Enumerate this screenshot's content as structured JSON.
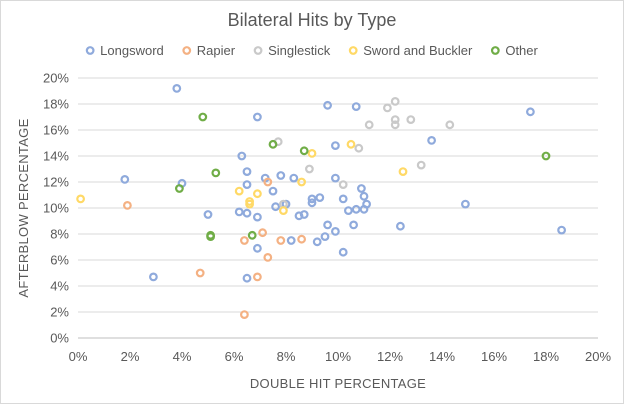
{
  "chart_data": {
    "type": "scatter",
    "title": "Bilateral Hits by Type",
    "xlabel": "DOUBLE HIT PERCENTAGE",
    "ylabel": "AFTERBLOW PERCENTAGE",
    "xlim": [
      0,
      20
    ],
    "ylim": [
      0,
      20
    ],
    "x_ticks": [
      "0%",
      "2%",
      "4%",
      "6%",
      "8%",
      "10%",
      "12%",
      "14%",
      "16%",
      "18%",
      "20%"
    ],
    "y_ticks": [
      "0%",
      "2%",
      "4%",
      "6%",
      "8%",
      "10%",
      "12%",
      "14%",
      "16%",
      "18%",
      "20%"
    ],
    "grid": "horizontal",
    "legend_position": "top",
    "series": [
      {
        "name": "Longsword",
        "color": "#8faadc",
        "points": [
          [
            3.8,
            19.2
          ],
          [
            1.8,
            12.2
          ],
          [
            4.0,
            11.9
          ],
          [
            2.9,
            4.7
          ],
          [
            5.0,
            9.5
          ],
          [
            6.2,
            9.7
          ],
          [
            6.5,
            9.6
          ],
          [
            6.3,
            14.0
          ],
          [
            6.5,
            12.8
          ],
          [
            6.5,
            11.8
          ],
          [
            6.9,
            9.3
          ],
          [
            6.9,
            6.9
          ],
          [
            6.9,
            17.0
          ],
          [
            6.5,
            4.6
          ],
          [
            7.2,
            12.3
          ],
          [
            7.5,
            11.3
          ],
          [
            7.6,
            10.1
          ],
          [
            7.8,
            12.5
          ],
          [
            8.0,
            10.3
          ],
          [
            8.3,
            12.3
          ],
          [
            8.2,
            7.5
          ],
          [
            8.5,
            9.4
          ],
          [
            8.7,
            9.5
          ],
          [
            9.0,
            10.4
          ],
          [
            9.0,
            10.7
          ],
          [
            9.2,
            7.4
          ],
          [
            9.3,
            10.8
          ],
          [
            9.5,
            7.8
          ],
          [
            9.6,
            8.7
          ],
          [
            9.6,
            17.9
          ],
          [
            9.9,
            8.2
          ],
          [
            9.9,
            12.3
          ],
          [
            9.9,
            14.8
          ],
          [
            10.2,
            10.7
          ],
          [
            10.2,
            6.6
          ],
          [
            10.4,
            9.8
          ],
          [
            10.6,
            8.7
          ],
          [
            10.7,
            9.9
          ],
          [
            10.7,
            17.8
          ],
          [
            10.9,
            11.5
          ],
          [
            11.0,
            10.9
          ],
          [
            11.0,
            9.9
          ],
          [
            11.1,
            10.3
          ],
          [
            12.4,
            8.6
          ],
          [
            13.6,
            15.2
          ],
          [
            14.9,
            10.3
          ],
          [
            17.4,
            17.4
          ],
          [
            18.6,
            8.3
          ]
        ]
      },
      {
        "name": "Rapier",
        "color": "#f4b183",
        "points": [
          [
            1.9,
            10.2
          ],
          [
            4.7,
            5.0
          ],
          [
            6.4,
            7.5
          ],
          [
            6.4,
            1.8
          ],
          [
            6.9,
            4.7
          ],
          [
            7.1,
            8.1
          ],
          [
            7.3,
            6.2
          ],
          [
            7.3,
            12.0
          ],
          [
            7.8,
            7.5
          ],
          [
            8.6,
            7.6
          ]
        ]
      },
      {
        "name": "Singlestick",
        "color": "#c9c9c9",
        "points": [
          [
            7.7,
            15.1
          ],
          [
            7.9,
            10.3
          ],
          [
            8.9,
            13.0
          ],
          [
            10.2,
            11.8
          ],
          [
            10.8,
            14.6
          ],
          [
            11.2,
            16.4
          ],
          [
            11.9,
            17.7
          ],
          [
            12.2,
            18.2
          ],
          [
            12.2,
            16.8
          ],
          [
            12.2,
            16.4
          ],
          [
            12.8,
            16.8
          ],
          [
            13.2,
            13.3
          ],
          [
            14.3,
            16.4
          ]
        ]
      },
      {
        "name": "Sword and Buckler",
        "color": "#ffd966",
        "points": [
          [
            0.1,
            10.7
          ],
          [
            6.2,
            11.3
          ],
          [
            6.6,
            10.5
          ],
          [
            6.6,
            10.3
          ],
          [
            6.9,
            11.1
          ],
          [
            7.9,
            9.8
          ],
          [
            8.6,
            12.0
          ],
          [
            9.0,
            14.2
          ],
          [
            10.5,
            14.9
          ],
          [
            12.5,
            12.8
          ]
        ]
      },
      {
        "name": "Other",
        "color": "#70ad47",
        "points": [
          [
            4.8,
            17.0
          ],
          [
            3.9,
            11.5
          ],
          [
            5.3,
            12.7
          ],
          [
            5.1,
            7.9
          ],
          [
            5.1,
            7.8
          ],
          [
            6.7,
            7.9
          ],
          [
            7.5,
            14.9
          ],
          [
            8.7,
            14.4
          ],
          [
            18.0,
            14.0
          ]
        ]
      }
    ]
  }
}
